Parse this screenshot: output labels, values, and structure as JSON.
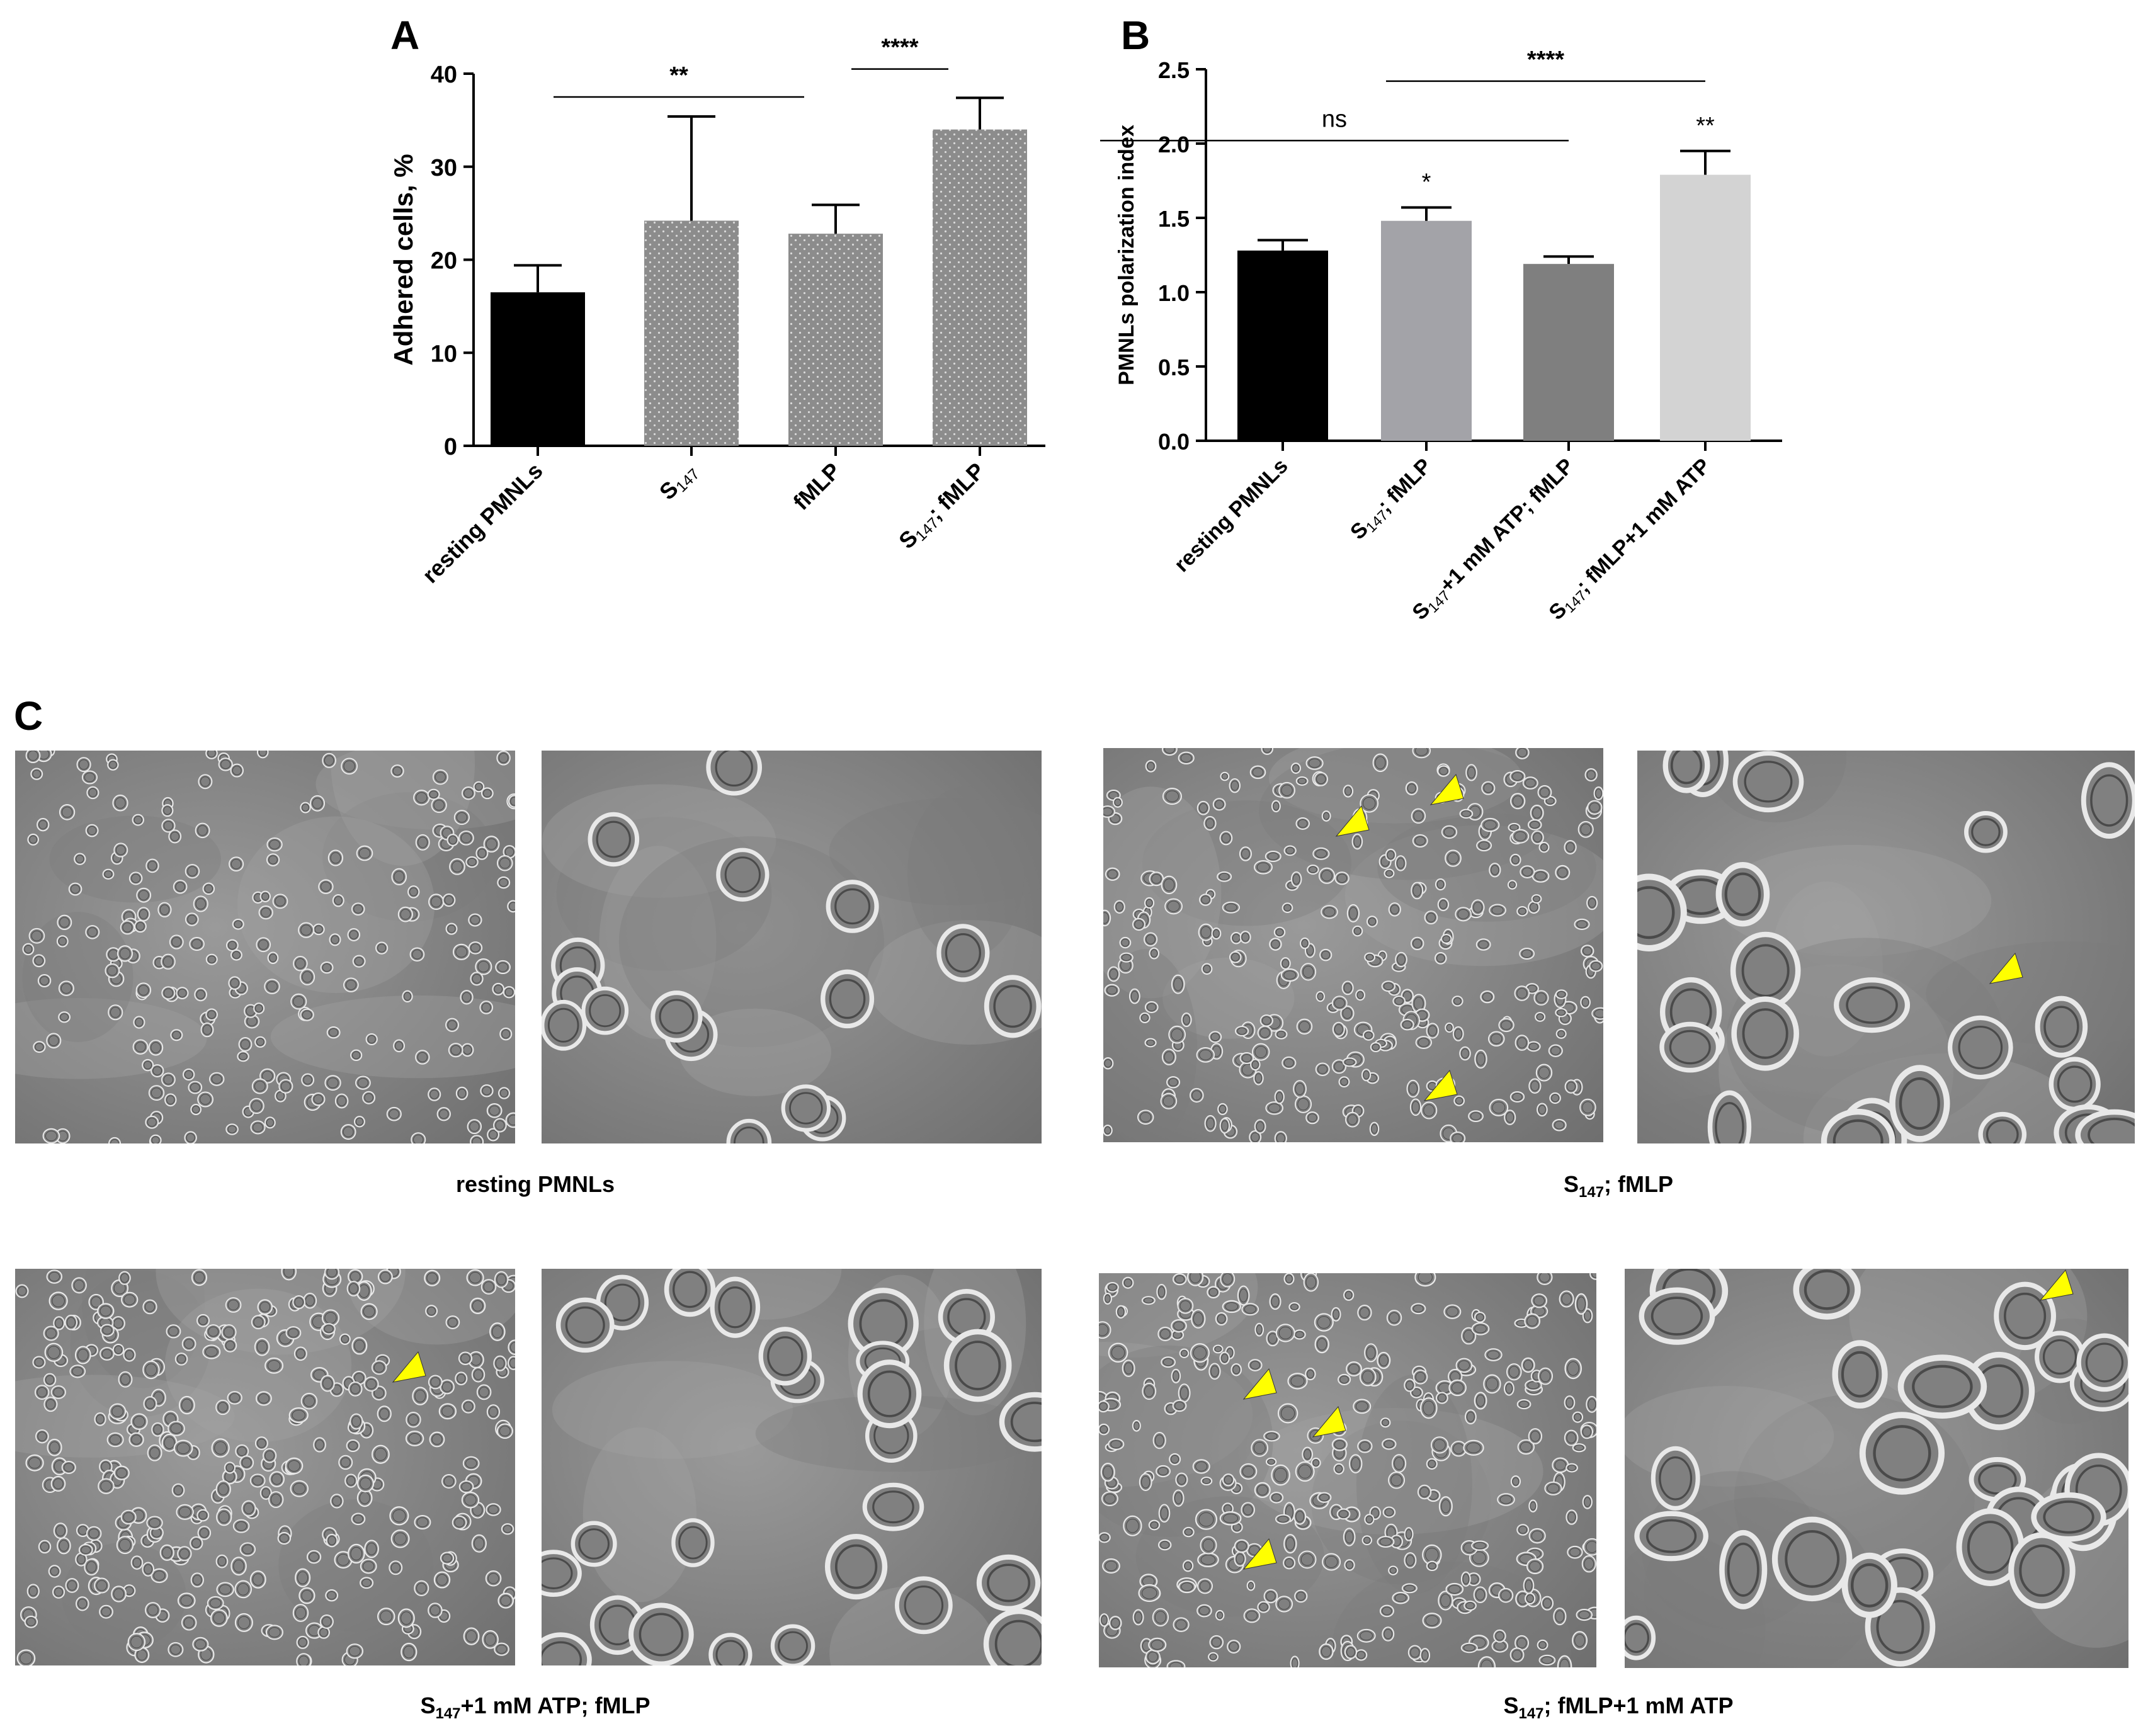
{
  "panel_a": {
    "letter": "A",
    "chart_data": {
      "type": "bar",
      "ylabel": "Adhered cells, %",
      "ylim": [
        0,
        40
      ],
      "yticks": [
        0,
        10,
        20,
        30,
        40
      ],
      "categories": [
        {
          "main": "resting PMNLs",
          "sub": "",
          "tail": ""
        },
        {
          "main": "S",
          "sub": "147",
          "tail": ""
        },
        {
          "main": "fMLP",
          "sub": "",
          "tail": ""
        },
        {
          "main": "S",
          "sub": "147",
          "tail": "; fMLP"
        }
      ],
      "values": [
        16.5,
        24.2,
        22.8,
        34.0
      ],
      "errors": [
        2.9,
        11.2,
        3.1,
        3.4
      ],
      "bar_colors": [
        "#000000",
        "#8c8c8c",
        "#8c8c8c",
        "#8c8c8c"
      ],
      "bar_dotted": [
        false,
        true,
        true,
        true
      ],
      "significance": [
        {
          "label": "**",
          "from": 0,
          "to": 2,
          "y": 37.5
        },
        {
          "label": "****",
          "from": 2,
          "to": 3,
          "y": 40.5
        }
      ]
    }
  },
  "panel_b": {
    "letter": "B",
    "chart_data": {
      "type": "bar",
      "ylabel": "PMNLs polarization index",
      "ylim": [
        0,
        2.5
      ],
      "yticks": [
        "0.0",
        "0.5",
        "1.0",
        "1.5",
        "2.0",
        "2.5"
      ],
      "categories": [
        {
          "main": "resting PMNLs",
          "sub": "",
          "tail": ""
        },
        {
          "main": "S",
          "sub": "147",
          "tail": "; fMLP"
        },
        {
          "main": "S",
          "sub": "147",
          "tail": "+1 mM ATP; fMLP"
        },
        {
          "main": "S",
          "sub": "147",
          "tail": "; fMLP+1 mM ATP"
        }
      ],
      "values": [
        1.28,
        1.48,
        1.19,
        1.79
      ],
      "errors": [
        0.07,
        0.09,
        0.05,
        0.16
      ],
      "bar_colors": [
        "#000000",
        "#a3a3a8",
        "#7f7f7f",
        "#d3d3d3"
      ],
      "bar_labels": [
        "",
        "*",
        "",
        "**"
      ],
      "significance": [
        {
          "label": "ns",
          "from": 0,
          "to": 2,
          "y": 2.02
        },
        {
          "label": "****",
          "from": 2,
          "to": 3,
          "y": 2.42
        }
      ]
    }
  },
  "panel_c": {
    "letter": "C",
    "captions": [
      {
        "main": "resting PMNLs",
        "sub": "",
        "tail": ""
      },
      {
        "main": "S",
        "sub": "147",
        "tail": "; fMLP"
      },
      {
        "main": "S",
        "sub": "147",
        "tail": "+1 mM ATP; fMLP"
      },
      {
        "main": "S",
        "sub": "147",
        "tail": "; fMLP+1 mM ATP"
      }
    ],
    "arrowhead_color": "#ffff00"
  }
}
